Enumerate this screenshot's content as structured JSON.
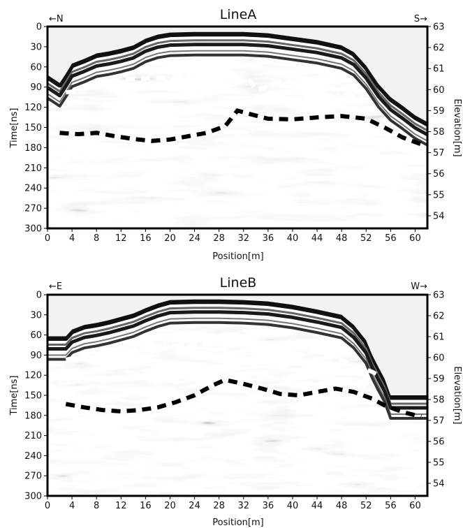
{
  "chart_data": [
    {
      "type": "heatmap",
      "title": "LineA",
      "direction_left": "←N",
      "direction_right": "S→",
      "xlabel": "Position[m]",
      "ylabel": "Time[ns]",
      "y2label": "Elevation[m]",
      "xlim": [
        0,
        62
      ],
      "ylim": [
        0,
        300
      ],
      "y2lim": [
        53.4,
        63
      ],
      "xticks": [
        0,
        4,
        8,
        12,
        16,
        20,
        24,
        28,
        32,
        36,
        40,
        44,
        48,
        52,
        56,
        60
      ],
      "yticks": [
        0,
        30,
        60,
        90,
        120,
        150,
        180,
        210,
        240,
        270,
        300
      ],
      "y2ticks": [
        54,
        55,
        56,
        57,
        58,
        59,
        60,
        61,
        62,
        63
      ],
      "surface": {
        "x": [
          0,
          1,
          2,
          3,
          4,
          6,
          8,
          10,
          12,
          14,
          16,
          18,
          20,
          24,
          28,
          32,
          36,
          40,
          44,
          48,
          50,
          52,
          54,
          56,
          58,
          60,
          62
        ],
        "time": [
          72,
          78,
          84,
          70,
          55,
          48,
          40,
          37,
          33,
          28,
          18,
          12,
          9,
          8,
          8,
          8,
          10,
          15,
          20,
          28,
          38,
          58,
          85,
          105,
          118,
          132,
          142
        ]
      },
      "series": [
        {
          "style": "white-dashed",
          "x": [
            3,
            5,
            7,
            9,
            11,
            14,
            17,
            20,
            24,
            28,
            31,
            33,
            34,
            36,
            40,
            43,
            46,
            49,
            52
          ],
          "values": [
            98,
            95,
            90,
            85,
            80,
            78,
            77,
            76,
            78,
            80,
            82,
            80,
            94,
            90,
            72,
            80,
            90,
            100,
            110
          ]
        },
        {
          "style": "black-dashed",
          "x": [
            2,
            5,
            8,
            11,
            14,
            17,
            20,
            23,
            26,
            29,
            31,
            33,
            36,
            40,
            44,
            48,
            52,
            55,
            58,
            61
          ],
          "values": [
            158,
            160,
            158,
            163,
            167,
            170,
            168,
            163,
            158,
            148,
            125,
            130,
            137,
            138,
            135,
            133,
            137,
            150,
            165,
            175
          ]
        }
      ]
    },
    {
      "type": "heatmap",
      "title": "LineB",
      "direction_left": "←E",
      "direction_right": "W→",
      "xlabel": "Position[m]",
      "ylabel": "Time[ns]",
      "y2label": "Elevation[m]",
      "xlim": [
        0,
        62
      ],
      "ylim": [
        0,
        300
      ],
      "y2lim": [
        53.4,
        63
      ],
      "xticks": [
        0,
        4,
        8,
        12,
        16,
        20,
        24,
        28,
        32,
        36,
        40,
        44,
        48,
        52,
        56,
        60
      ],
      "yticks": [
        0,
        30,
        60,
        90,
        120,
        150,
        180,
        210,
        240,
        270,
        300
      ],
      "y2ticks": [
        54,
        55,
        56,
        57,
        58,
        59,
        60,
        61,
        62,
        63
      ],
      "surface": {
        "x": [
          0,
          2,
          3,
          4,
          6,
          8,
          10,
          12,
          14,
          16,
          18,
          20,
          24,
          28,
          32,
          36,
          40,
          44,
          48,
          50,
          52,
          53,
          54,
          55,
          56,
          58,
          60,
          62
        ],
        "time": [
          62,
          62,
          62,
          52,
          45,
          42,
          38,
          33,
          28,
          20,
          13,
          8,
          7,
          7,
          8,
          10,
          15,
          22,
          30,
          45,
          68,
          90,
          108,
          125,
          150,
          150,
          150,
          150
        ]
      },
      "series": [
        {
          "style": "white-dashed",
          "x": [
            3,
            5,
            7,
            9,
            11,
            14,
            17,
            20,
            23,
            26,
            29,
            32,
            35,
            38,
            41,
            44,
            47,
            50,
            53,
            54
          ],
          "values": [
            97,
            93,
            90,
            86,
            85,
            82,
            78,
            76,
            76,
            74,
            72,
            72,
            72,
            73,
            78,
            85,
            95,
            105,
            115,
            120
          ]
        },
        {
          "style": "black-dashed",
          "x": [
            3,
            6,
            9,
            12,
            15,
            18,
            21,
            24,
            27,
            29,
            32,
            35,
            38,
            41,
            44,
            47,
            50,
            53,
            55,
            58,
            61
          ],
          "values": [
            163,
            168,
            172,
            174,
            172,
            168,
            160,
            150,
            135,
            127,
            133,
            140,
            148,
            150,
            145,
            140,
            145,
            155,
            165,
            175,
            182
          ]
        }
      ]
    }
  ]
}
